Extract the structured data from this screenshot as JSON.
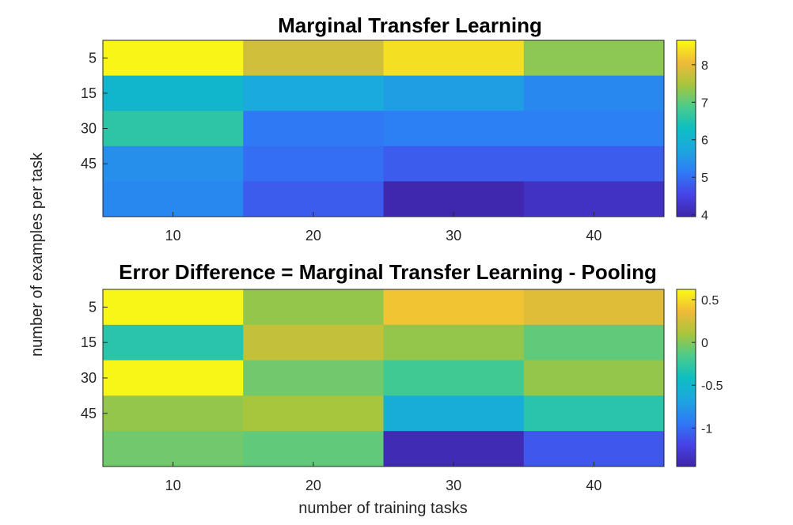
{
  "figure": {
    "ylabel": "number of examples per task",
    "xlabel": "number of training tasks"
  },
  "chart_data": [
    {
      "type": "heatmap",
      "title": "Marginal Transfer Learning",
      "x": [
        10,
        20,
        30,
        40
      ],
      "xticks": [
        10,
        20,
        30,
        40
      ],
      "yticks": [
        5,
        15,
        30,
        45
      ],
      "rows": 5,
      "values": [
        [
          8.6,
          7.8,
          8.4,
          7.3
        ],
        [
          6.1,
          5.8,
          5.6,
          5.3
        ],
        [
          6.6,
          5.1,
          5.2,
          5.2
        ],
        [
          5.4,
          5.0,
          4.8,
          4.8
        ],
        [
          5.3,
          4.8,
          4.0,
          4.2
        ]
      ],
      "clim": [
        3.95,
        8.65
      ],
      "colorbar": {
        "ticks": [
          4,
          5,
          6,
          7,
          8
        ]
      },
      "colormap": "parula"
    },
    {
      "type": "heatmap",
      "title": "Error Difference = Marginal Transfer Learning - Pooling",
      "x": [
        10,
        20,
        30,
        40
      ],
      "xticks": [
        10,
        20,
        30,
        40
      ],
      "yticks": [
        5,
        15,
        30,
        45
      ],
      "rows": 5,
      "values": [
        [
          0.6,
          0.05,
          0.4,
          0.3
        ],
        [
          -0.3,
          0.2,
          0.05,
          -0.1
        ],
        [
          0.6,
          -0.05,
          -0.2,
          0.05
        ],
        [
          0.05,
          0.1,
          -0.6,
          -0.3
        ],
        [
          -0.05,
          -0.1,
          -1.4,
          -1.1
        ]
      ],
      "clim": [
        -1.45,
        0.62
      ],
      "colorbar": {
        "ticks": [
          0.5,
          0,
          -0.5,
          -1
        ]
      },
      "colormap": "parula"
    }
  ]
}
